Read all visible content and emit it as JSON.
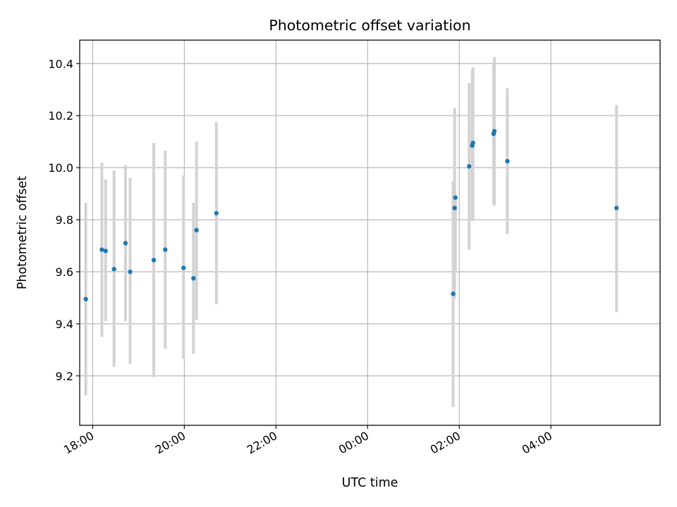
{
  "chart_data": {
    "type": "scatter",
    "title": "Photometric offset variation",
    "xlabel": "UTC time",
    "ylabel": "Photometric offset",
    "x_unit": "UTC time (HH:MM)",
    "xlim": [
      "17:43",
      "06:23"
    ],
    "ylim": [
      9.01,
      10.49
    ],
    "x_ticks": [
      "18:00",
      "20:00",
      "22:00",
      "00:00",
      "02:00",
      "04:00"
    ],
    "y_ticks": [
      9.2,
      9.4,
      9.6,
      9.8,
      10.0,
      10.2,
      10.4
    ],
    "y_tick_labels": [
      "9.2",
      "9.4",
      "9.6",
      "9.8",
      "10.0",
      "10.2",
      "10.4"
    ],
    "grid": true,
    "legend": "none",
    "colors": {
      "point": "#1f77b4",
      "errorbar": "#d3d3d3",
      "grid": "#b0b0b0"
    },
    "points": [
      {
        "x": "17:51",
        "y": 9.495,
        "low": 9.125,
        "high": 9.865
      },
      {
        "x": "18:12",
        "y": 9.685,
        "low": 9.35,
        "high": 10.02
      },
      {
        "x": "18:17",
        "y": 9.68,
        "low": 9.41,
        "high": 9.955
      },
      {
        "x": "18:28",
        "y": 9.61,
        "low": 9.235,
        "high": 9.99
      },
      {
        "x": "18:43",
        "y": 9.71,
        "low": 9.41,
        "high": 10.01
      },
      {
        "x": "18:49",
        "y": 9.6,
        "low": 9.245,
        "high": 9.96
      },
      {
        "x": "19:20",
        "y": 9.645,
        "low": 9.195,
        "high": 10.095
      },
      {
        "x": "19:35",
        "y": 9.685,
        "low": 9.305,
        "high": 10.065
      },
      {
        "x": "19:59",
        "y": 9.615,
        "low": 9.265,
        "high": 9.97
      },
      {
        "x": "20:12",
        "y": 9.575,
        "low": 9.285,
        "high": 9.865
      },
      {
        "x": "20:16",
        "y": 9.76,
        "low": 9.415,
        "high": 10.1
      },
      {
        "x": "20:42",
        "y": 9.825,
        "low": 9.475,
        "high": 10.175
      },
      {
        "x": "01:52",
        "y": 9.515,
        "low": 9.08,
        "high": 9.95
      },
      {
        "x": "01:54",
        "y": 9.845,
        "low": 9.495,
        "high": 10.23
      },
      {
        "x": "01:55",
        "y": 9.885,
        "low": 9.6,
        "high": 9.89
      },
      {
        "x": "02:13",
        "y": 10.005,
        "low": 9.685,
        "high": 10.325
      },
      {
        "x": "02:17",
        "y": 10.085,
        "low": 9.795,
        "high": 10.375
      },
      {
        "x": "02:18",
        "y": 10.095,
        "low": 9.8,
        "high": 10.385
      },
      {
        "x": "02:45",
        "y": 10.13,
        "low": 9.86,
        "high": 10.4
      },
      {
        "x": "02:46",
        "y": 10.14,
        "low": 9.855,
        "high": 10.425
      },
      {
        "x": "03:03",
        "y": 10.025,
        "low": 9.745,
        "high": 10.305
      },
      {
        "x": "05:26",
        "y": 9.845,
        "low": 9.445,
        "high": 10.24
      }
    ]
  }
}
